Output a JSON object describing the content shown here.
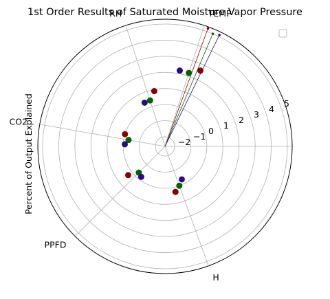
{
  "chart_data": {
    "type": "polar-scatter",
    "title": "1st Order Results of Saturated Moisture Vapor Pressure",
    "ylabel": "Percent of Output Explained",
    "categories": [
      "TEMP",
      "RH",
      "CO2",
      "PPFD",
      "H"
    ],
    "r_ticks": [
      "−2",
      "−1",
      "0",
      "1",
      "2",
      "3",
      "4",
      "5"
    ],
    "r_tick_values": [
      -2,
      -1,
      0,
      1,
      2,
      3,
      4,
      5
    ],
    "rlim": [
      -2.6,
      5.3
    ],
    "legend": {
      "placement": "top-right",
      "entries": [
        ""
      ]
    },
    "series": [
      {
        "color": "#8b0000",
        "values": [
          2.6,
          0.9,
          0.0,
          0.3,
          0.3
        ],
        "line_end_r": 5.2
      },
      {
        "color": "#006400",
        "values": [
          2.2,
          0.4,
          -0.3,
          -0.3,
          0.0
        ],
        "line_end_r": 5.0
      },
      {
        "color": "#2a0a8a",
        "values": [
          2.2,
          0.4,
          -0.1,
          -0.2,
          -0.3
        ],
        "line_end_r": 5.1
      }
    ]
  }
}
